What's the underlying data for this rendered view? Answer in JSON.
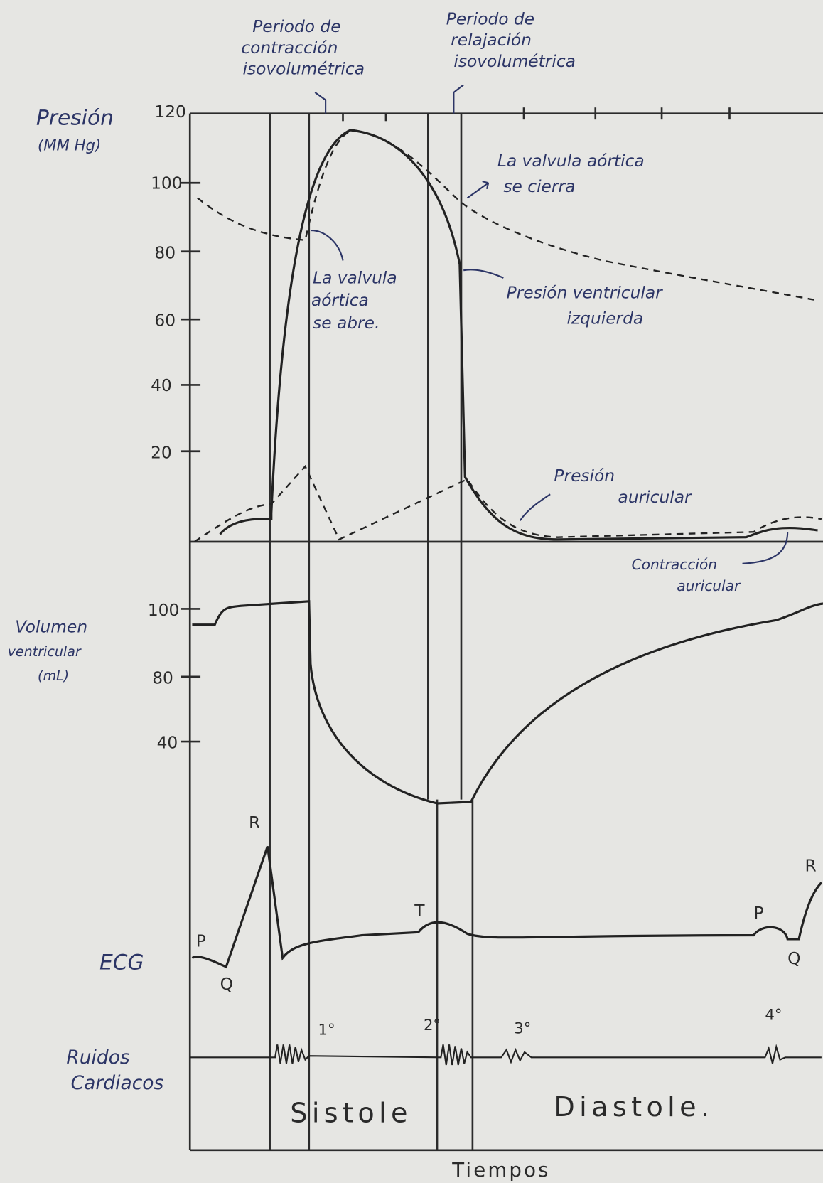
{
  "header_labels": {
    "contraction_period": [
      "Periodo de",
      "contracción",
      "isovolumétrica"
    ],
    "relaxation_period": [
      "Periodo de",
      "relajación",
      "isovolumétrica"
    ]
  },
  "pressure_axis": {
    "label": [
      "Presión",
      "(MM Hg)"
    ],
    "ticks": [
      120,
      100,
      80,
      60,
      40,
      20
    ]
  },
  "pressure_annotations": {
    "aortic_closes": [
      "La valvula aórtica",
      "se cierra"
    ],
    "aortic_opens": [
      "La valvula",
      "aórtica",
      "se abre."
    ],
    "lv_pressure": [
      "Presión ventricular",
      "izquierda"
    ],
    "atrial_pressure": [
      "Presión",
      "auricular"
    ],
    "atrial_contraction": [
      "Contracción",
      "auricular"
    ]
  },
  "volume_axis": {
    "label": [
      "Volumen",
      "ventricular",
      "(mL)"
    ],
    "ticks": [
      100,
      80,
      40
    ]
  },
  "ecg": {
    "label": "ECG",
    "waves": [
      "R",
      "T",
      "P",
      "Q",
      "P",
      "Q",
      "R"
    ]
  },
  "heart_sounds": {
    "label": [
      "Ruidos",
      "Cardiacos"
    ],
    "sounds": [
      "1°",
      "2°",
      "3°",
      "4°"
    ]
  },
  "phases": {
    "systole": "Sistole",
    "diastole": "Diastole."
  },
  "x_axis_label": "Tiempos"
}
